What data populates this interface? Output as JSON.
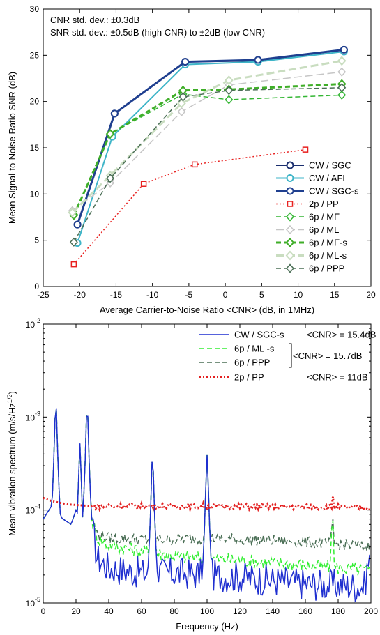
{
  "chart_data": [
    {
      "type": "line",
      "xlabel": "Average Carrier-to-Noise Ratio <CNR> (dB, in 1MHz)",
      "ylabel": "Mean Signal-to-Noise Ratio SNR (dB)",
      "xlim": [
        -25,
        20
      ],
      "ylim": [
        0,
        30
      ],
      "xticks": [
        -25,
        -20,
        -15,
        -10,
        -5,
        0,
        5,
        10,
        15,
        20
      ],
      "yticks": [
        0,
        5,
        10,
        15,
        20,
        25,
        30
      ],
      "grid": false,
      "legend_position": "bottom-right",
      "annotations": [
        "CNR std. dev.: ±0.3dB",
        "SNR std. dev.: ±0.5dB (high CNR) to ±2dB (low CNR)"
      ],
      "series": [
        {
          "name": "CW / SGC",
          "color": "#1a2e6e",
          "marker": "circle",
          "dash": "solid",
          "width": 2,
          "x": [
            -20.3,
            -15.2,
            -5.5,
            4.5,
            16.3
          ],
          "y": [
            6.7,
            18.7,
            24.3,
            24.4,
            25.6
          ]
        },
        {
          "name": "CW / AFL",
          "color": "#3fb5c8",
          "marker": "circle",
          "dash": "solid",
          "width": 2,
          "x": [
            -20.3,
            -15.5,
            -5.5,
            4.5,
            16.3
          ],
          "y": [
            4.7,
            16.2,
            24.0,
            24.3,
            25.4
          ]
        },
        {
          "name": "CW / SGC-s",
          "color": "#1f3f8f",
          "marker": "circle",
          "dash": "solid",
          "width": 3,
          "x": [
            -20.3,
            -15.2,
            -5.5,
            4.5,
            16.3
          ],
          "y": [
            6.7,
            18.7,
            24.3,
            24.5,
            25.6
          ]
        },
        {
          "name": "2p / PP",
          "color": "#e8201f",
          "marker": "square",
          "dash": "dot",
          "width": 1.5,
          "x": [
            -20.8,
            -11.2,
            -4.2,
            11.0
          ],
          "y": [
            2.4,
            11.1,
            13.2,
            14.8
          ]
        },
        {
          "name": "6p / MF",
          "color": "#33b633",
          "marker": "diamond",
          "dash": "dash",
          "width": 1.5,
          "x": [
            -20.8,
            -15.8,
            -5.8,
            0.5,
            16.0
          ],
          "y": [
            7.8,
            16.5,
            20.8,
            20.2,
            20.7
          ]
        },
        {
          "name": "6p / ML",
          "color": "#c6c6c6",
          "marker": "diamond",
          "dash": "longdash",
          "width": 1.5,
          "x": [
            -21.0,
            -15.8,
            -6.0,
            0.5,
            16.0
          ],
          "y": [
            8.2,
            11.2,
            18.9,
            21.8,
            23.2
          ]
        },
        {
          "name": "6p / MF-s",
          "color": "#3fae28",
          "marker": "diamond",
          "dash": "dash",
          "width": 3,
          "x": [
            -20.8,
            -15.8,
            -5.8,
            0.5,
            16.0
          ],
          "y": [
            7.7,
            16.5,
            21.2,
            21.3,
            21.9
          ]
        },
        {
          "name": "6p / ML-s",
          "color": "#c9ddc0",
          "marker": "diamond",
          "dash": "longdash",
          "width": 3,
          "x": [
            -21.0,
            -15.8,
            -6.0,
            0.5,
            16.0
          ],
          "y": [
            8.0,
            12.0,
            19.8,
            22.3,
            24.4
          ]
        },
        {
          "name": "6p / PPP",
          "color": "#4a6e55",
          "marker": "diamond",
          "dash": "dash",
          "width": 1.5,
          "x": [
            -20.8,
            -15.8,
            -5.8,
            0.5,
            16.0
          ],
          "y": [
            4.8,
            11.7,
            20.5,
            21.2,
            21.5
          ]
        }
      ]
    },
    {
      "type": "line",
      "xlabel": "Frequency (Hz)",
      "ylabel": "Mean vibration spectrum (m/s/Hz",
      "ylabel_sup": "1/2",
      "ylabel_end": ")",
      "xlim": [
        0,
        200
      ],
      "ylim_log10": [
        -5,
        -2
      ],
      "xticks": [
        0,
        20,
        40,
        60,
        80,
        100,
        120,
        140,
        160,
        180,
        200
      ],
      "yticks": [
        {
          "base": "10",
          "exp": "-5"
        },
        {
          "base": "10",
          "exp": "-4"
        },
        {
          "base": "10",
          "exp": "-3"
        },
        {
          "base": "10",
          "exp": "-2"
        }
      ],
      "log_scale_y": true,
      "grid": false,
      "legend_position": "top-right",
      "cnr_labels": {
        "sgc": "<CNR> = 15.4dB",
        "group": "<CNR> = 15.7dB",
        "pp": "<CNR> = 11dB"
      },
      "peaks_hz": [
        7.7,
        22.4,
        26.8,
        66.7,
        100.0
      ],
      "series": [
        {
          "name": "CW / SGC-s",
          "color": "#1f2fd0",
          "dash": "solid",
          "width": 1.5,
          "baseline": [
            [
              0,
              8e-05
            ],
            [
              5,
              0.00011
            ],
            [
              12,
              8e-05
            ],
            [
              17,
              7e-05
            ],
            [
              20,
              0.0001
            ],
            [
              25,
              7e-05
            ],
            [
              29,
              8.5e-05
            ],
            [
              33,
              3e-05
            ],
            [
              40,
              2.4e-05
            ],
            [
              60,
              2.1e-05
            ],
            [
              80,
              2.1e-05
            ],
            [
              100,
              2e-05
            ],
            [
              120,
              1.9e-05
            ],
            [
              140,
              1.75e-05
            ],
            [
              160,
              1.6e-05
            ],
            [
              180,
              1.55e-05
            ],
            [
              196,
              1.5e-05
            ],
            [
              200,
              4e-05
            ]
          ],
          "noise": 0.35,
          "peak_heights": [
            0.00145,
            0.00052,
            0.00135,
            0.00039,
            0.00039
          ],
          "spike": null
        },
        {
          "name": "6p /  ML -s",
          "color": "#33ee33",
          "dash": "dash",
          "width": 1.5,
          "baseline": [
            [
              0,
              8e-05
            ],
            [
              5,
              0.00011
            ],
            [
              12,
              8e-05
            ],
            [
              17,
              7e-05
            ],
            [
              20,
              0.0001
            ],
            [
              25,
              7e-05
            ],
            [
              29,
              8.5e-05
            ],
            [
              33,
              5e-05
            ],
            [
              40,
              4.2e-05
            ],
            [
              60,
              3.6e-05
            ],
            [
              80,
              3.2e-05
            ],
            [
              100,
              3e-05
            ],
            [
              120,
              2.9e-05
            ],
            [
              140,
              2.7e-05
            ],
            [
              160,
              2.55e-05
            ],
            [
              180,
              2.4e-05
            ],
            [
              200,
              2.2e-05
            ]
          ],
          "noise": 0.15,
          "peak_heights": [
            0.00145,
            0.00052,
            0.00138,
            0.00039,
            0.00039
          ],
          "spike": {
            "hz": 176.5,
            "height": 9e-05
          }
        },
        {
          "name": "6p / PPP",
          "color": "#4a6e55",
          "dash": "dash",
          "width": 1.5,
          "baseline": [
            [
              0,
              8e-05
            ],
            [
              5,
              0.00011
            ],
            [
              12,
              8e-05
            ],
            [
              17,
              7e-05
            ],
            [
              20,
              0.0001
            ],
            [
              25,
              7e-05
            ],
            [
              29,
              8.5e-05
            ],
            [
              33,
              5.5e-05
            ],
            [
              40,
              5e-05
            ],
            [
              60,
              4.8e-05
            ],
            [
              80,
              4.8e-05
            ],
            [
              100,
              5e-05
            ],
            [
              120,
              4.8e-05
            ],
            [
              140,
              4.7e-05
            ],
            [
              160,
              4.5e-05
            ],
            [
              180,
              4.3e-05
            ],
            [
              200,
              4e-05
            ]
          ],
          "noise": 0.12,
          "peak_heights": [
            0.00145,
            0.00052,
            0.00138,
            0.00039,
            0.00039
          ],
          "spike": {
            "hz": 176.5,
            "height": 9.5e-05
          }
        },
        {
          "name": "2p / PP",
          "color": "#e32020",
          "dash": "dot",
          "width": 3,
          "baseline": [
            [
              0,
              0.000135
            ],
            [
              5,
              0.000125
            ],
            [
              15,
              0.000115
            ],
            [
              30,
              0.00011
            ],
            [
              60,
              0.00011
            ],
            [
              100,
              0.00011
            ],
            [
              140,
              0.000108
            ],
            [
              170,
              0.000108
            ],
            [
              200,
              0.000105
            ]
          ],
          "noise": 0.06,
          "peak_heights": [
            null,
            null,
            null,
            null,
            null
          ],
          "spike": {
            "hz": 177.0,
            "height": 0.00015
          }
        }
      ]
    }
  ]
}
